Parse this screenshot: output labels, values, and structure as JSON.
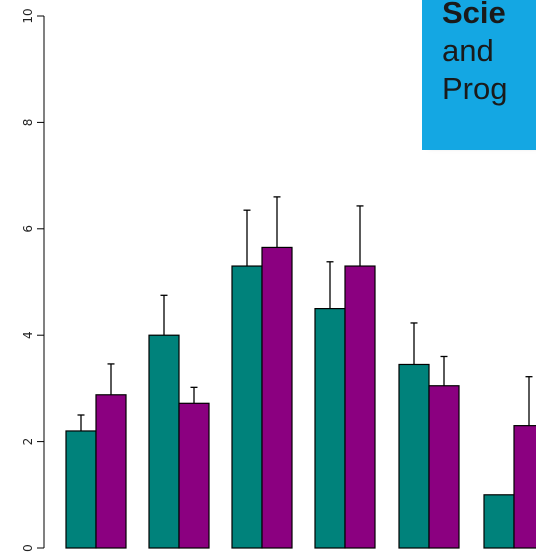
{
  "chart_data": {
    "type": "bar",
    "categories": [
      "",
      "",
      "",
      "",
      "",
      ""
    ],
    "series": [
      {
        "values": [
          2.2,
          4.0,
          5.3,
          4.5,
          3.45,
          1.0
        ],
        "errors": [
          0.3,
          0.75,
          1.05,
          0.88,
          0.78,
          0.0
        ]
      },
      {
        "values": [
          2.88,
          2.72,
          5.65,
          5.3,
          3.05,
          2.3
        ],
        "errors": [
          0.58,
          0.3,
          0.95,
          1.13,
          0.55,
          0.92
        ]
      }
    ],
    "colors": [
      "#00827b",
      "#8b0080"
    ],
    "ylim": [
      0,
      10
    ],
    "yticks": [
      "0",
      "2",
      "4",
      "6",
      "8",
      "10"
    ],
    "title": "",
    "xlabel": "",
    "ylabel": ""
  },
  "callout": {
    "lines": [
      "Scie",
      "and",
      "Prog"
    ],
    "background": "#14a7e3"
  }
}
